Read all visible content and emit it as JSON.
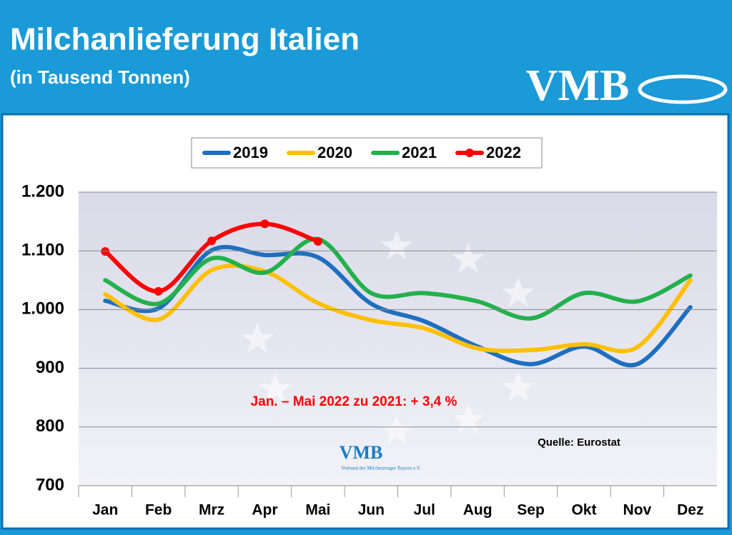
{
  "header": {
    "title": "Milchanlieferung Italien",
    "subtitle": "(in Tausend Tonnen)",
    "logo": "VMB"
  },
  "chart_data": {
    "type": "line",
    "categories": [
      "Jan",
      "Feb",
      "Mrz",
      "Apr",
      "Mai",
      "Jun",
      "Jul",
      "Aug",
      "Sep",
      "Okt",
      "Nov",
      "Dez"
    ],
    "series": [
      {
        "name": "2019",
        "color": "#1f6fc0",
        "values": [
          1015,
          1002,
          1101,
          1093,
          1089,
          1010,
          980,
          937,
          907,
          937,
          907,
          1004
        ]
      },
      {
        "name": "2020",
        "color": "#ffc000",
        "values": [
          1026,
          983,
          1067,
          1065,
          1011,
          982,
          968,
          934,
          931,
          941,
          936,
          1050
        ]
      },
      {
        "name": "2021",
        "color": "#22b14c",
        "values": [
          1050,
          1010,
          1087,
          1063,
          1120,
          1028,
          1028,
          1014,
          985,
          1028,
          1014,
          1058
        ]
      },
      {
        "name": "2022",
        "color": "#ff0000",
        "values": [
          1099,
          1031,
          1117,
          1146,
          1116,
          null,
          null,
          null,
          null,
          null,
          null,
          null
        ]
      }
    ],
    "ylim": [
      700,
      1200
    ],
    "yticks": [
      700,
      800,
      900,
      {
        "value": 1000,
        "label": "1.000"
      },
      {
        "value": 1100,
        "label": "1.100"
      },
      {
        "value": 1200,
        "label": "1.200"
      }
    ],
    "grid": true,
    "annotation": "Jan. – Mai 2022 zu 2021: + 3,4 %",
    "source": "Quelle: Eurostat",
    "watermark": {
      "logo": "VMB",
      "text": "Verbund der Milcherzeuger Bayern e.V."
    }
  }
}
